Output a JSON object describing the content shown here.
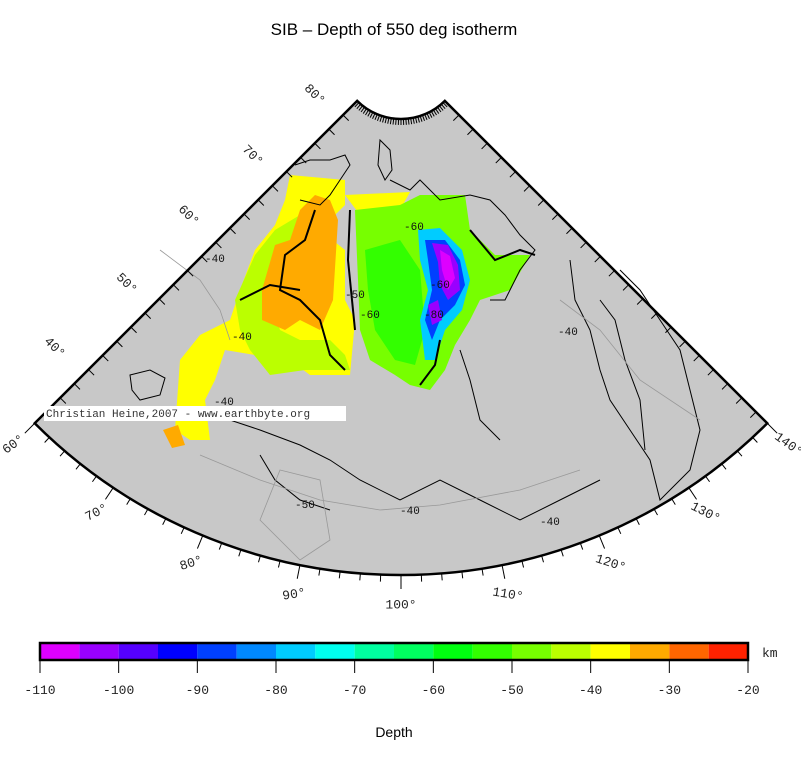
{
  "title": "SIB – Depth of 550 deg isotherm",
  "map": {
    "projection": "conic",
    "background_color": "#c8c8c8",
    "longitude_labels": [
      "60°",
      "70°",
      "80°",
      "90°",
      "100°",
      "110°",
      "120°",
      "130°",
      "140°"
    ],
    "latitude_labels": [
      "80°",
      "70°",
      "60°",
      "50°",
      "40°"
    ],
    "contour_labels": [
      "-40",
      "-40",
      "-40",
      "-40",
      "-40",
      "-50",
      "-40",
      "-60",
      "-60",
      "-50",
      "-80",
      "-60"
    ],
    "watermark": "Christian Heine,2007 - www.earthbyte.org"
  },
  "colorbar": {
    "label": "Depth",
    "unit": "km",
    "range": [
      -110,
      -20
    ],
    "step": 5,
    "tick_labels": [
      "-110",
      "-100",
      "-90",
      "-80",
      "-70",
      "-60",
      "-50",
      "-40",
      "-30",
      "-20"
    ],
    "colors": [
      "#dd00ff",
      "#9900ff",
      "#5500ff",
      "#0000ff",
      "#0040ff",
      "#0088ff",
      "#00ccff",
      "#00ffee",
      "#00ffa0",
      "#00ff60",
      "#00ff10",
      "#33ff00",
      "#77ff00",
      "#bbff00",
      "#ffff00",
      "#ffaa00",
      "#ff6600",
      "#ff2200"
    ]
  }
}
